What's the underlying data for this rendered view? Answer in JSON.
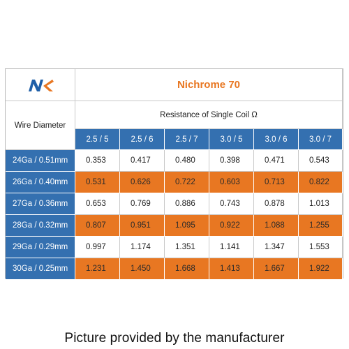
{
  "brand": {
    "logo_text": "NK",
    "accent": "#e87722",
    "blue": "#3470b0"
  },
  "table": {
    "title": "Nichrome 70",
    "row_header_label": "Wire Diameter",
    "subtitle": "Resistance of Single Coil Ω",
    "columns": [
      "2.5 / 5",
      "2.5 / 6",
      "2.5 / 7",
      "3.0 / 5",
      "3.0 / 6",
      "3.0 / 7"
    ],
    "rows": [
      {
        "label": "24Ga / 0.51mm",
        "values": [
          "0.353",
          "0.417",
          "0.480",
          "0.398",
          "0.471",
          "0.543"
        ],
        "highlight": false
      },
      {
        "label": "26Ga / 0.40mm",
        "values": [
          "0.531",
          "0.626",
          "0.722",
          "0.603",
          "0.713",
          "0.822"
        ],
        "highlight": true
      },
      {
        "label": "27Ga / 0.36mm",
        "values": [
          "0.653",
          "0.769",
          "0.886",
          "0.743",
          "0.878",
          "1.013"
        ],
        "highlight": false
      },
      {
        "label": "28Ga / 0.32mm",
        "values": [
          "0.807",
          "0.951",
          "1.095",
          "0.922",
          "1.088",
          "1.255"
        ],
        "highlight": true
      },
      {
        "label": "29Ga / 0.29mm",
        "values": [
          "0.997",
          "1.174",
          "1.351",
          "1.141",
          "1.347",
          "1.553"
        ],
        "highlight": false
      },
      {
        "label": "30Ga / 0.25mm",
        "values": [
          "1.231",
          "1.450",
          "1.668",
          "1.413",
          "1.667",
          "1.922"
        ],
        "highlight": true
      }
    ]
  },
  "caption": "Picture provided by the manufacturer"
}
